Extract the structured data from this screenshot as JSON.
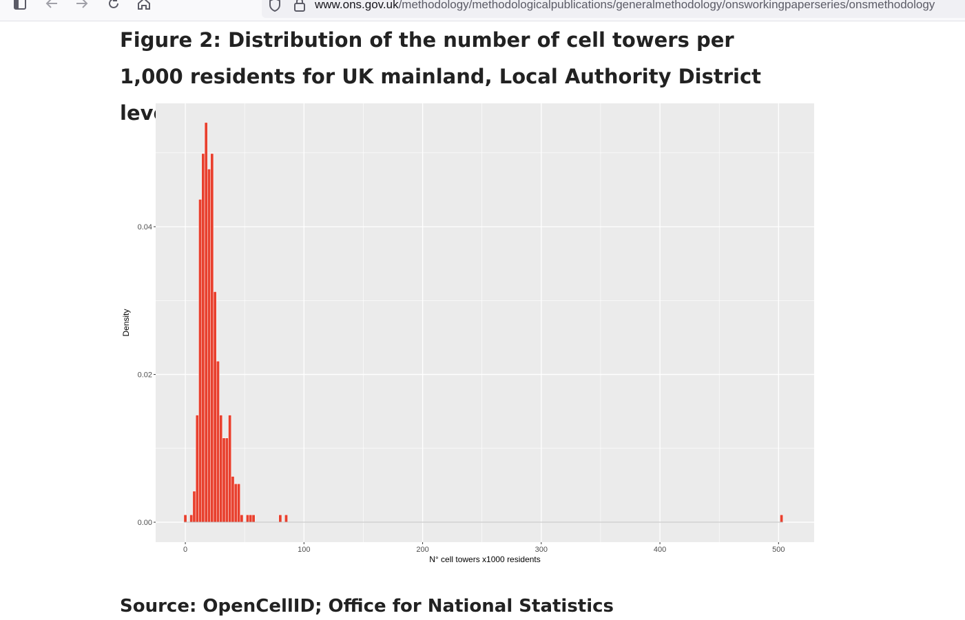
{
  "browser": {
    "url_host": "www.ons.gov.uk",
    "url_path": "/methodology/methodologicalpublications/generalmethodology/onsworkingpaperseries/onsmethodology"
  },
  "page": {
    "figure_title": "Figure 2: Distribution of the number of cell towers per 1,000 residents for UK mainland, Local Authority District level",
    "source": "Source: OpenCellID; Office for National Statistics"
  },
  "colors": {
    "bar_fill": "#e8402e",
    "bar_outline": "#ffffff",
    "panel_bg": "#ebebeb",
    "grid": "#ffffff"
  },
  "chart_data": {
    "type": "bar",
    "subtype": "histogram",
    "xlabel": "N° cell towers x1000 residents",
    "ylabel": "Density",
    "xlim": [
      -25,
      530
    ],
    "ylim": [
      -0.0027,
      0.0567
    ],
    "x_ticks": [
      0,
      100,
      200,
      300,
      400,
      500
    ],
    "x_tick_labels": [
      "0",
      "100",
      "200",
      "300",
      "400",
      "500"
    ],
    "y_ticks": [
      0.0,
      0.02,
      0.04
    ],
    "y_tick_labels": [
      "0.00",
      "0.02",
      "0.04"
    ],
    "grid": true,
    "bin_width": 2.5,
    "bins": [
      {
        "x0": -1.25,
        "x1": 1.25,
        "density": 0.001
      },
      {
        "x0": 3.75,
        "x1": 6.25,
        "density": 0.001
      },
      {
        "x0": 6.25,
        "x1": 8.75,
        "density": 0.0042
      },
      {
        "x0": 8.75,
        "x1": 11.25,
        "density": 0.0145
      },
      {
        "x0": 11.25,
        "x1": 13.75,
        "density": 0.0437
      },
      {
        "x0": 13.75,
        "x1": 16.25,
        "density": 0.0499
      },
      {
        "x0": 16.25,
        "x1": 18.75,
        "density": 0.0541
      },
      {
        "x0": 18.75,
        "x1": 21.25,
        "density": 0.0478
      },
      {
        "x0": 21.25,
        "x1": 23.75,
        "density": 0.0499
      },
      {
        "x0": 23.75,
        "x1": 26.25,
        "density": 0.0312
      },
      {
        "x0": 26.25,
        "x1": 28.75,
        "density": 0.0218
      },
      {
        "x0": 28.75,
        "x1": 31.25,
        "density": 0.0145
      },
      {
        "x0": 31.25,
        "x1": 33.75,
        "density": 0.0114
      },
      {
        "x0": 33.75,
        "x1": 36.25,
        "density": 0.0114
      },
      {
        "x0": 36.25,
        "x1": 38.75,
        "density": 0.0145
      },
      {
        "x0": 38.75,
        "x1": 41.25,
        "density": 0.0062
      },
      {
        "x0": 41.25,
        "x1": 43.75,
        "density": 0.0052
      },
      {
        "x0": 43.75,
        "x1": 46.25,
        "density": 0.0052
      },
      {
        "x0": 46.25,
        "x1": 48.75,
        "density": 0.001
      },
      {
        "x0": 51.25,
        "x1": 53.75,
        "density": 0.001
      },
      {
        "x0": 53.75,
        "x1": 56.25,
        "density": 0.001
      },
      {
        "x0": 56.25,
        "x1": 58.75,
        "density": 0.001
      },
      {
        "x0": 78.75,
        "x1": 81.25,
        "density": 0.001
      },
      {
        "x0": 83.75,
        "x1": 86.25,
        "density": 0.001
      },
      {
        "x0": 501.25,
        "x1": 503.75,
        "density": 0.001
      }
    ]
  }
}
